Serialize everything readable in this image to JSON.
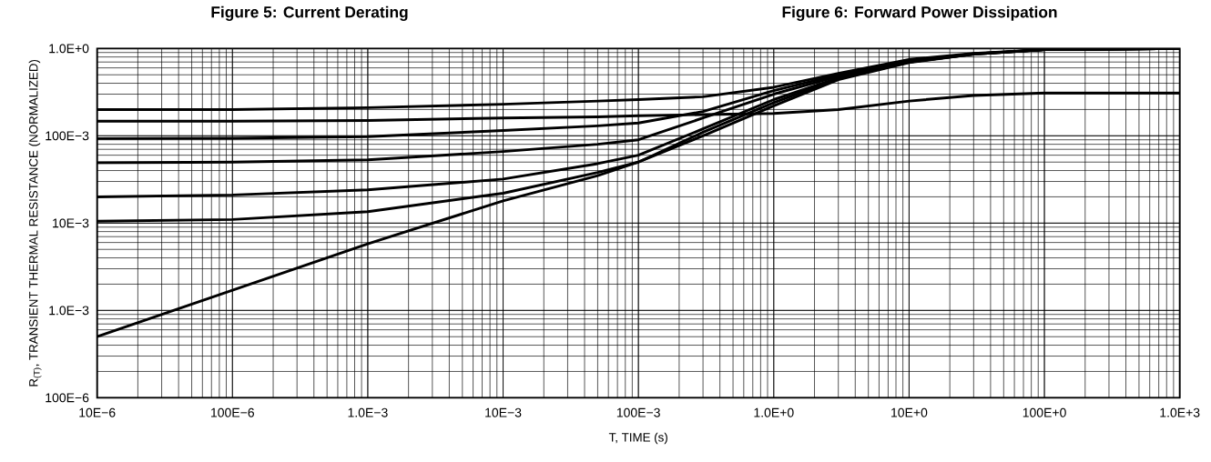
{
  "chart_data": {
    "type": "line",
    "xlabel": "T, TIME (s)",
    "ylabel": "R$_{(T)}$, TRANSIENT THERMAL RESISTANCE (NORMALIZED)",
    "annotations": [
      "Figure 5: Current Derating",
      "Figure 6: Forward Power Dissipation"
    ],
    "x": [
      1e-05,
      0.0001,
      0.001,
      0.01,
      0.05,
      0.1,
      0.3,
      1,
      3,
      10,
      30,
      100,
      1000
    ],
    "series": [
      {
        "color": "#000000",
        "values": [
          0.2,
          0.2,
          0.21,
          0.23,
          0.25,
          0.26,
          0.28,
          0.36,
          0.52,
          0.75,
          0.88,
          0.97,
          1.0
        ]
      },
      {
        "color": "#000000",
        "values": [
          0.147,
          0.147,
          0.15,
          0.16,
          0.165,
          0.17,
          0.175,
          0.18,
          0.2,
          0.25,
          0.29,
          0.31,
          0.31
        ]
      },
      {
        "color": "#000000",
        "values": [
          0.093,
          0.094,
          0.098,
          0.115,
          0.13,
          0.14,
          0.19,
          0.33,
          0.5,
          0.73,
          0.87,
          0.97,
          1.0
        ]
      },
      {
        "color": "#000000",
        "values": [
          0.049,
          0.05,
          0.053,
          0.066,
          0.08,
          0.09,
          0.16,
          0.3,
          0.48,
          0.72,
          0.87,
          0.97,
          1.0
        ]
      },
      {
        "color": "#000000",
        "values": [
          0.02,
          0.021,
          0.024,
          0.032,
          0.048,
          0.06,
          0.12,
          0.26,
          0.46,
          0.7,
          0.86,
          0.97,
          1.0
        ]
      },
      {
        "color": "#000000",
        "values": [
          0.0105,
          0.011,
          0.0135,
          0.022,
          0.038,
          0.05,
          0.11,
          0.24,
          0.45,
          0.7,
          0.86,
          0.97,
          1.0
        ]
      },
      {
        "color": "#000000",
        "values": [
          0.0005,
          0.0017,
          0.0058,
          0.018,
          0.035,
          0.05,
          0.1,
          0.22,
          0.44,
          0.69,
          0.86,
          0.97,
          1.0
        ]
      }
    ],
    "log": "xy",
    "xlim": [
      1e-05,
      1000
    ],
    "ylim": [
      0.0001,
      1
    ],
    "xticks": [
      {
        "value": 1e-05,
        "label": "10E−6"
      },
      {
        "value": 0.0001,
        "label": "100E−6"
      },
      {
        "value": 0.001,
        "label": "1.0E−3"
      },
      {
        "value": 0.01,
        "label": "10E−3"
      },
      {
        "value": 0.1,
        "label": "100E−3"
      },
      {
        "value": 1,
        "label": "1.0E+0"
      },
      {
        "value": 10,
        "label": "10E+0"
      },
      {
        "value": 100,
        "label": "100E+0"
      },
      {
        "value": 1000,
        "label": "1.0E+3"
      }
    ],
    "yticks": [
      {
        "value": 0.0001,
        "label": "100E−6"
      },
      {
        "value": 0.001,
        "label": "1.0E−3"
      },
      {
        "value": 0.01,
        "label": "10E−3"
      },
      {
        "value": 0.1,
        "label": "100E−3"
      },
      {
        "value": 1,
        "label": "1.0E+0"
      }
    ],
    "grid": true,
    "marker": "none",
    "line_style": "solid"
  }
}
